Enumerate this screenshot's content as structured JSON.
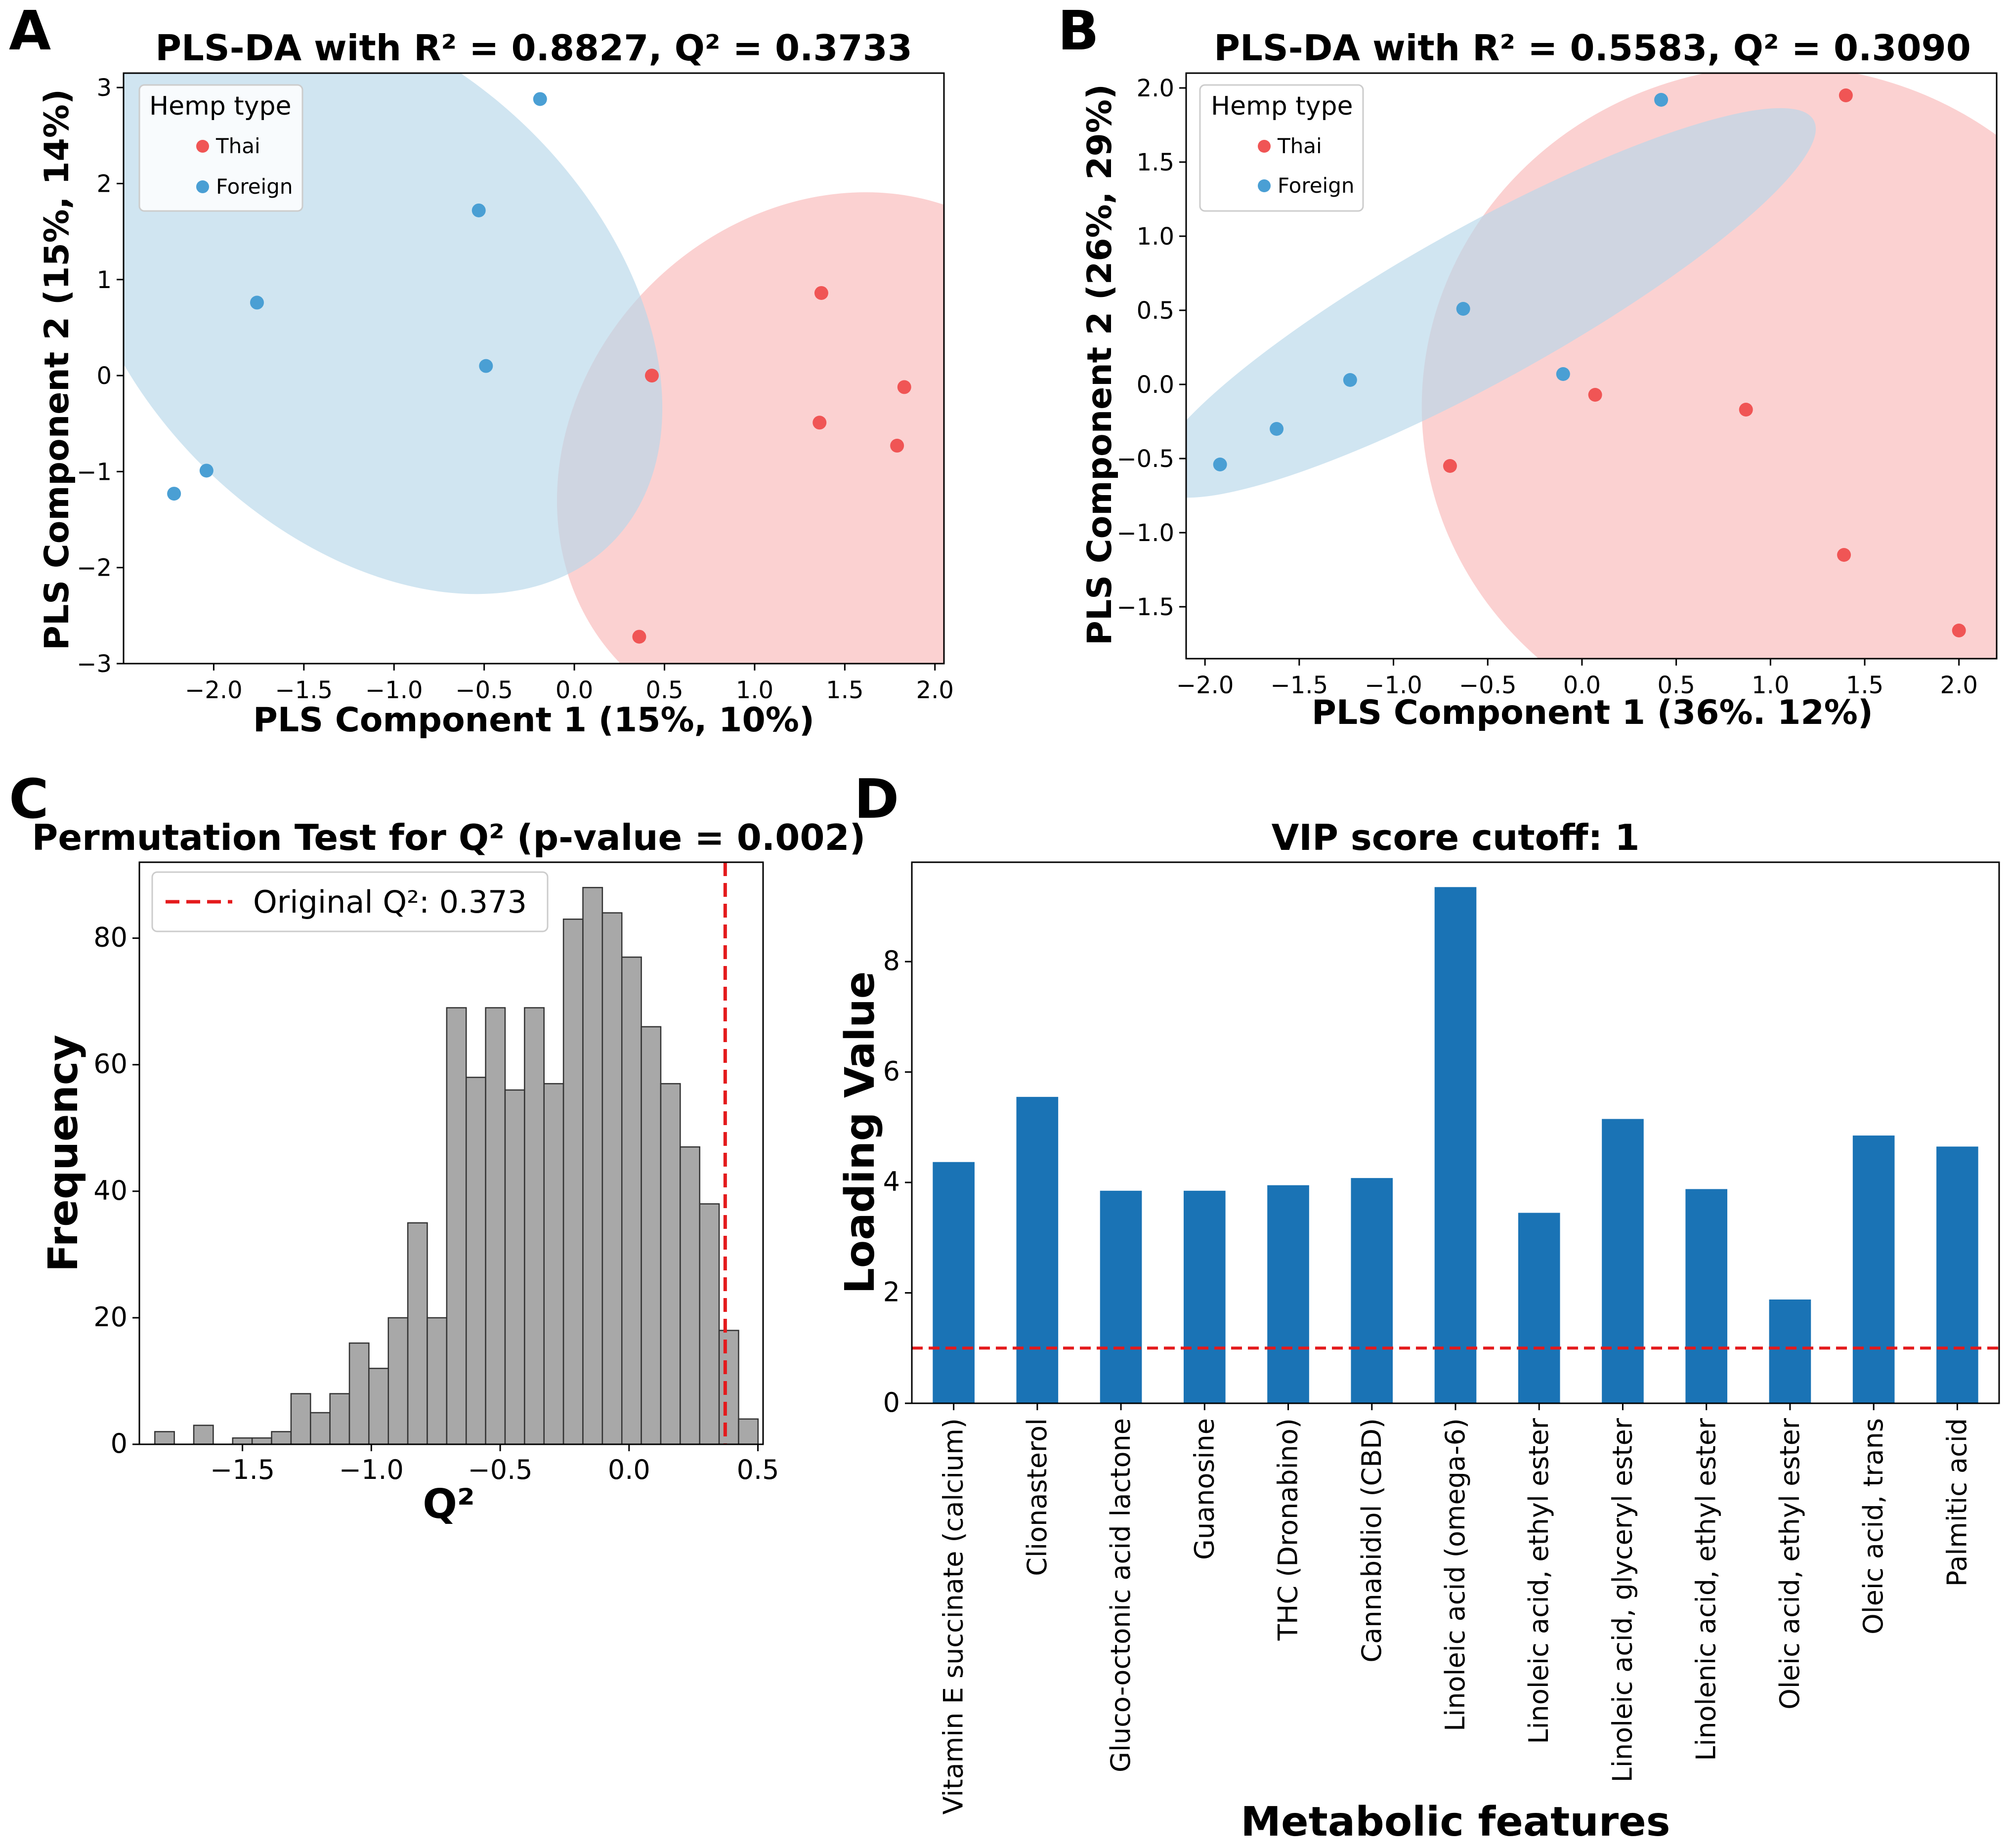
{
  "colors": {
    "thai": "#f05555",
    "foreign": "#4a9fd4",
    "thai_ellipse": "#f9b3b3",
    "foreign_ellipse": "#b7d7ea",
    "hist_bar": "#a8a8a8",
    "vip_bar": "#1a73b5",
    "cutoff_line": "#e41a1c"
  },
  "panels": {
    "A": {
      "label": "A",
      "legend_title": "Hemp type",
      "legend_thai": "Thai",
      "legend_foreign": "Foreign"
    },
    "B": {
      "label": "B",
      "legend_title": "Hemp type",
      "legend_thai": "Thai",
      "legend_foreign": "Foreign"
    },
    "C": {
      "label": "C",
      "legend_label": "Original Q²: 0.373"
    },
    "D": {
      "label": "D"
    }
  },
  "chart_data": [
    {
      "id": "A",
      "type": "scatter",
      "title": "PLS-DA with R² = 0.8827, Q² = 0.3733",
      "xlabel": "PLS Component 1 (15%, 10%)",
      "ylabel": "PLS Component 2 (15%, 14%)",
      "xlim": [
        -2.5,
        2.05
      ],
      "ylim": [
        -3.0,
        3.15
      ],
      "xticks": [
        -2.0,
        -1.5,
        -1.0,
        -0.5,
        0.0,
        0.5,
        1.0,
        1.5,
        2.0
      ],
      "xtick_labels": [
        "−2.0",
        "−1.5",
        "−1.0",
        "−0.5",
        "0.0",
        "0.5",
        "1.0",
        "1.5",
        "2.0"
      ],
      "yticks": [
        -3,
        -2,
        -1,
        0,
        1,
        2,
        3
      ],
      "ytick_labels": [
        "−3",
        "−2",
        "−1",
        "0",
        "1",
        "2",
        "3"
      ],
      "series": [
        {
          "name": "Thai",
          "points": [
            [
              0.43,
              0.0
            ],
            [
              1.37,
              0.86
            ],
            [
              1.36,
              -0.49
            ],
            [
              1.83,
              -0.12
            ],
            [
              1.79,
              -0.73
            ],
            [
              0.36,
              -2.72
            ]
          ],
          "ellipse": {
            "cx": 1.4,
            "cy": -0.9,
            "rx": 1.6,
            "ry": 2.6,
            "angle": 45
          }
        },
        {
          "name": "Foreign",
          "points": [
            [
              -0.19,
              2.88
            ],
            [
              -0.53,
              1.72
            ],
            [
              -1.76,
              0.76
            ],
            [
              -0.49,
              0.1
            ],
            [
              -2.04,
              -0.99
            ],
            [
              -2.22,
              -1.23
            ]
          ],
          "ellipse": {
            "cx": -1.15,
            "cy": 0.8,
            "rx": 1.3,
            "ry": 3.6,
            "angle": 45
          }
        }
      ]
    },
    {
      "id": "B",
      "type": "scatter",
      "title": "PLS-DA with R² = 0.5583, Q² = 0.3090",
      "xlabel": "PLS Component 1 (36%. 12%)",
      "ylabel": "PLS Component 2 (26%, 29%)",
      "xlim": [
        -2.1,
        2.2
      ],
      "ylim": [
        -1.85,
        2.1
      ],
      "xticks": [
        -2.0,
        -1.5,
        -1.0,
        -0.5,
        0.0,
        0.5,
        1.0,
        1.5,
        2.0
      ],
      "xtick_labels": [
        "−2.0",
        "−1.5",
        "−1.0",
        "−0.5",
        "0.0",
        "0.5",
        "1.0",
        "1.5",
        "2.0"
      ],
      "yticks": [
        -1.5,
        -1.0,
        -0.5,
        0.0,
        0.5,
        1.0,
        1.5,
        2.0
      ],
      "ytick_labels": [
        "−1.5",
        "−1.0",
        "−0.5",
        "0.0",
        "0.5",
        "1.0",
        "1.5",
        "2.0"
      ],
      "series": [
        {
          "name": "Thai",
          "points": [
            [
              1.4,
              1.95
            ],
            [
              0.07,
              -0.07
            ],
            [
              0.87,
              -0.17
            ],
            [
              -0.7,
              -0.55
            ],
            [
              1.39,
              -1.15
            ],
            [
              2.0,
              -1.66
            ]
          ],
          "ellipse": {
            "cx": 1.05,
            "cy": -0.15,
            "rx": 1.9,
            "ry": 2.3,
            "angle": 0
          }
        },
        {
          "name": "Foreign",
          "points": [
            [
              0.42,
              1.92
            ],
            [
              -0.63,
              0.51
            ],
            [
              -1.23,
              0.03
            ],
            [
              -0.1,
              0.07
            ],
            [
              -1.62,
              -0.3
            ],
            [
              -1.92,
              -0.54
            ]
          ],
          "ellipse": {
            "cx": -0.52,
            "cy": 0.55,
            "rx": 2.0,
            "ry": 0.52,
            "angle": 29
          }
        }
      ]
    },
    {
      "id": "C",
      "type": "bar",
      "title": "Permutation Test for Q² (p-value = 0.002)",
      "xlabel": "Q²",
      "ylabel": "Frequency",
      "xlim": [
        -1.9,
        0.52
      ],
      "ylim": [
        0,
        92
      ],
      "xticks": [
        -1.5,
        -1.0,
        -0.5,
        0.0,
        0.5
      ],
      "xtick_labels": [
        "−1.5",
        "−1.0",
        "−0.5",
        "0.0",
        "0.5"
      ],
      "yticks": [
        0,
        20,
        40,
        60,
        80
      ],
      "ytick_labels": [
        "0",
        "20",
        "40",
        "60",
        "80"
      ],
      "bin_start": -1.84,
      "bin_width": 0.0755,
      "values": [
        2,
        0,
        3,
        0,
        1,
        1,
        2,
        8,
        5,
        8,
        16,
        12,
        20,
        35,
        20,
        69,
        58,
        69,
        56,
        69,
        57,
        83,
        88,
        84,
        77,
        66,
        57,
        47,
        38,
        18,
        4
      ],
      "original_q2": 0.373
    },
    {
      "id": "D",
      "type": "bar",
      "title": "VIP score cutoff: 1",
      "xlabel": "Metabolic features",
      "ylabel": "Loading Value",
      "ylim": [
        0,
        9.8
      ],
      "yticks": [
        0,
        2,
        4,
        6,
        8
      ],
      "ytick_labels": [
        "0",
        "2",
        "4",
        "6",
        "8"
      ],
      "cutoff": 1,
      "categories": [
        "Vitamin E succinate (calcium)",
        "Clionasterol",
        "Gluco-octonic acid lactone",
        "Guanosine",
        "THC (Dronabino)",
        "Cannabidiol (CBD)",
        "Linoleic acid (omega-6)",
        "Linoleic acid, ethyl ester",
        "Linoleic acid, glyceryl ester",
        "Linolenic acid, ethyl ester",
        "Oleic acid, ethyl ester",
        "Oleic acid, trans",
        "Palmitic acid"
      ],
      "values": [
        4.37,
        5.55,
        3.85,
        3.85,
        3.95,
        4.08,
        9.35,
        3.45,
        5.15,
        3.88,
        1.88,
        4.85,
        4.65
      ]
    }
  ]
}
